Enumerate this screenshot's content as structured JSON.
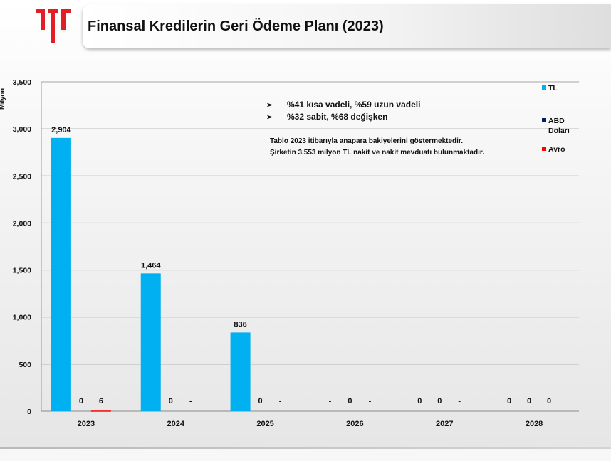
{
  "header": {
    "title": "Finansal Kredilerin Geri Ödeme Planı (2023)"
  },
  "colors": {
    "logo": "#e31e24",
    "tl": "#00b0f0",
    "usd": "#002060",
    "eur": "#ff0000",
    "gridline": "#a6a6a6"
  },
  "chart_data": {
    "type": "bar",
    "ylabel": "Milyon",
    "xlabel": "",
    "ylim": [
      0,
      3500
    ],
    "yticks": [
      0,
      500,
      1000,
      1500,
      2000,
      2500,
      3000,
      3500
    ],
    "ytick_labels": [
      "0",
      "500",
      "1,000",
      "1,500",
      "2,000",
      "2,500",
      "3,000",
      "3,500"
    ],
    "grid": true,
    "legend_position": "right",
    "categories": [
      "2023",
      "2024",
      "2025",
      "2026",
      "2027",
      "2028"
    ],
    "series": [
      {
        "name": "TL",
        "color": "#00b0f0",
        "values": [
          2904,
          1464,
          836,
          null,
          0,
          0
        ],
        "labels": [
          "2,904",
          "1,464",
          "836",
          "-",
          "0",
          "0"
        ]
      },
      {
        "name": "ABD Doları",
        "color": "#002060",
        "values": [
          0,
          0,
          0,
          0,
          0,
          0
        ],
        "labels": [
          "0",
          "0",
          "0",
          "0",
          "0",
          "0"
        ]
      },
      {
        "name": "Avro",
        "color": "#ff0000",
        "values": [
          6,
          null,
          null,
          null,
          null,
          0
        ],
        "labels": [
          "6",
          "-",
          "-",
          "-",
          "-",
          "0"
        ]
      }
    ],
    "annotations": {
      "bullets": [
        "%41 kısa vadeli, %59 uzun vadeli",
        "%32 sabit, %68 değişken"
      ],
      "notes": [
        "Tablo 2023 itibarıyla anapara bakiyelerini göstermektedir.",
        "Şirketin 3.553 milyon TL nakit ve nakit mevduatı bulunmaktadır."
      ]
    },
    "legend": [
      {
        "lines": [
          "TL"
        ]
      },
      {
        "lines": [
          "ABD",
          "Doları"
        ]
      },
      {
        "lines": [
          "Avro"
        ]
      }
    ]
  }
}
